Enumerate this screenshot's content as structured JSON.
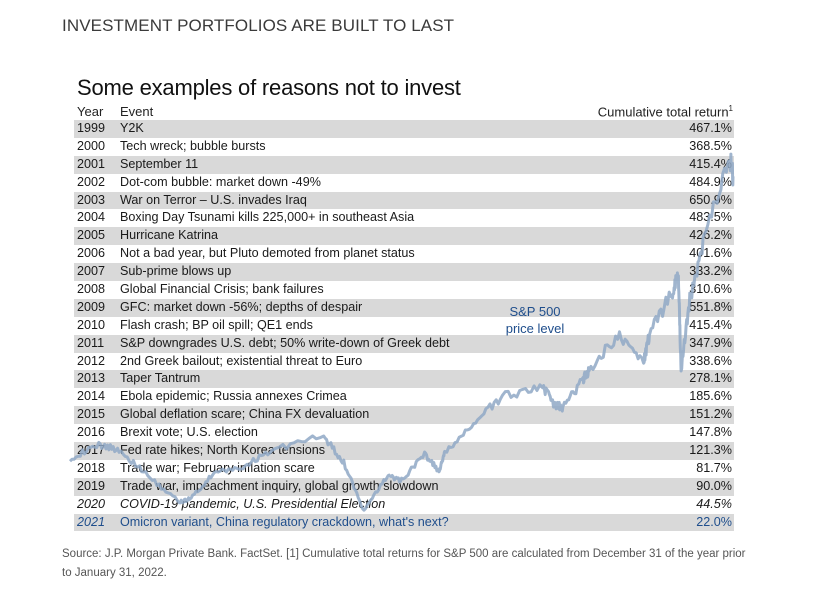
{
  "page": {
    "heading": "INVESTMENT PORTFOLIOS ARE BUILT TO LAST",
    "source_note": "Source: J.P. Morgan Private Bank. FactSet. [1] Cumulative total returns for S&P 500 are calculated from December 31 of the year prior to January 31, 2022."
  },
  "colors": {
    "row_shade": "#d9d9d9",
    "line": "#8fa8c6",
    "accent_blue": "#1f4e8c",
    "text": "#1a1a1a"
  },
  "chart_data": [
    {
      "type": "table",
      "title": "Some examples of reasons not to invest",
      "columns": [
        "Year",
        "Event",
        "Cumulative total return"
      ],
      "return_header_footnote": "1",
      "rows": [
        {
          "year": "1999",
          "event": "Y2K",
          "return": "467.1%",
          "value": 467.1
        },
        {
          "year": "2000",
          "event": "Tech wreck; bubble bursts",
          "return": "368.5%",
          "value": 368.5
        },
        {
          "year": "2001",
          "event": "September 11",
          "return": "415.4%",
          "value": 415.4
        },
        {
          "year": "2002",
          "event": "Dot-com bubble: market down -49%",
          "return": "484.9%",
          "value": 484.9
        },
        {
          "year": "2003",
          "event": "War on Terror – U.S. invades Iraq",
          "return": "650.9%",
          "value": 650.9
        },
        {
          "year": "2004",
          "event": "Boxing Day Tsunami kills 225,000+ in southeast Asia",
          "return": "483.5%",
          "value": 483.5
        },
        {
          "year": "2005",
          "event": "Hurricane Katrina",
          "return": "426.2%",
          "value": 426.2
        },
        {
          "year": "2006",
          "event": "Not a bad year, but Pluto demoted from planet status",
          "return": "401.6%",
          "value": 401.6
        },
        {
          "year": "2007",
          "event": "Sub-prime blows up",
          "return": "333.2%",
          "value": 333.2
        },
        {
          "year": "2008",
          "event": "Global Financial Crisis; bank failures",
          "return": "310.6%",
          "value": 310.6
        },
        {
          "year": "2009",
          "event": "GFC: market down -56%; depths of despair",
          "return": "551.8%",
          "value": 551.8
        },
        {
          "year": "2010",
          "event": "Flash crash; BP oil spill; QE1 ends",
          "return": "415.4%",
          "value": 415.4
        },
        {
          "year": "2011",
          "event": "S&P downgrades U.S. debt; 50% write-down of Greek debt",
          "return": "347.9%",
          "value": 347.9
        },
        {
          "year": "2012",
          "event": "2nd Greek bailout; existential threat to Euro",
          "return": "338.6%",
          "value": 338.6
        },
        {
          "year": "2013",
          "event": "Taper Tantrum",
          "return": "278.1%",
          "value": 278.1
        },
        {
          "year": "2014",
          "event": "Ebola epidemic; Russia annexes Crimea",
          "return": "185.6%",
          "value": 185.6
        },
        {
          "year": "2015",
          "event": "Global deflation scare; China FX devaluation",
          "return": "151.2%",
          "value": 151.2
        },
        {
          "year": "2016",
          "event": "Brexit vote; U.S. election",
          "return": "147.8%",
          "value": 147.8
        },
        {
          "year": "2017",
          "event": "Fed rate hikes; North Korea tensions",
          "return": "121.3%",
          "value": 121.3
        },
        {
          "year": "2018",
          "event": "Trade war; February inflation scare",
          "return": "81.7%",
          "value": 81.7
        },
        {
          "year": "2019",
          "event": "Trade war, impeachment inquiry, global growth slowdown",
          "return": "90.0%",
          "value": 90.0
        },
        {
          "year": "2020",
          "event": "COVID-19 pandemic, U.S. Presidential Election",
          "return": "44.5%",
          "value": 44.5,
          "style": "italic"
        },
        {
          "year": "2021",
          "event": "Omicron variant, China regulatory crackdown, what's next?",
          "return": "22.0%",
          "value": 22.0,
          "style": "future"
        }
      ]
    },
    {
      "type": "line",
      "series": [
        {
          "name": "S&P 500 price level",
          "x": [
            1999,
            2000,
            2000.7,
            2001.7,
            2002.8,
            2003.2,
            2004,
            2005,
            2006,
            2007.8,
            2008.5,
            2009.2,
            2010,
            2010.5,
            2011.3,
            2011.8,
            2012,
            2013,
            2014,
            2015.4,
            2015.8,
            2016.1,
            2016.8,
            2017,
            2018,
            2018.9,
            2019.1,
            2019.9,
            2020.1,
            2020.2,
            2020.5,
            2021,
            2021.9,
            2022
          ],
          "y": [
            1300,
            1450,
            1400,
            1100,
            800,
            850,
            1130,
            1200,
            1400,
            1550,
            1250,
            700,
            1100,
            1050,
            1350,
            1150,
            1350,
            1700,
            2000,
            2120,
            1900,
            1880,
            2200,
            2300,
            2700,
            2400,
            2700,
            3200,
            3380,
            2300,
            3100,
            3800,
            4700,
            4500
          ]
        }
      ],
      "legend": "S&P 500\nprice level",
      "legend_line1": "S&P 500",
      "legend_line2": "price level",
      "xlim": [
        1999,
        2022
      ],
      "ylim": [
        600,
        4800
      ],
      "grid": false
    }
  ]
}
